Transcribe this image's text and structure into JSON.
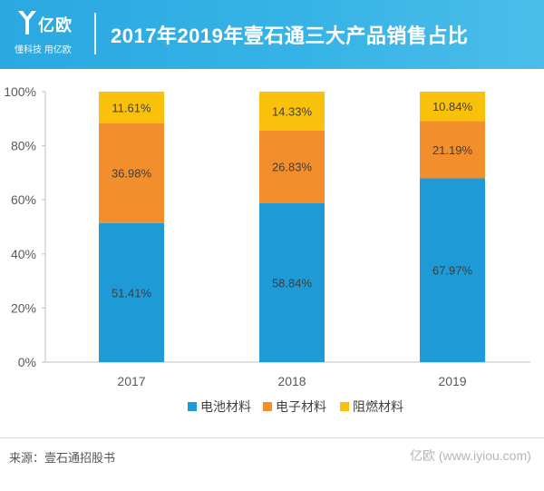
{
  "header": {
    "brand": "亿欧",
    "slogan": "懂科技 用亿欧",
    "title": "2017年2019年壹石通三大产品销售占比",
    "color": "#33aee4"
  },
  "footer": {
    "source": "来源：壹石通招股书",
    "watermark": "亿欧 (www.iyiou.com)"
  },
  "chart_data": {
    "type": "bar",
    "stacked": true,
    "categories": [
      "2017",
      "2018",
      "2019"
    ],
    "series": [
      {
        "name": "电池材料",
        "color": "#1e9ad6",
        "values": [
          51.41,
          58.84,
          67.97
        ],
        "labels": [
          "51.41%",
          "58.84%",
          "67.97%"
        ]
      },
      {
        "name": "电子材料",
        "color": "#f28e2b",
        "values": [
          36.98,
          26.83,
          21.19
        ],
        "labels": [
          "36.98%",
          "26.83%",
          "21.19%"
        ]
      },
      {
        "name": "阻燃材料",
        "color": "#f9c10b",
        "values": [
          11.61,
          14.33,
          10.84
        ],
        "labels": [
          "11.61%",
          "14.33%",
          "10.84%"
        ]
      }
    ],
    "yticks": [
      "0%",
      "20%",
      "40%",
      "60%",
      "80%",
      "100%"
    ],
    "ylim": [
      0,
      100
    ],
    "grid": false,
    "legend_position": "bottom"
  }
}
